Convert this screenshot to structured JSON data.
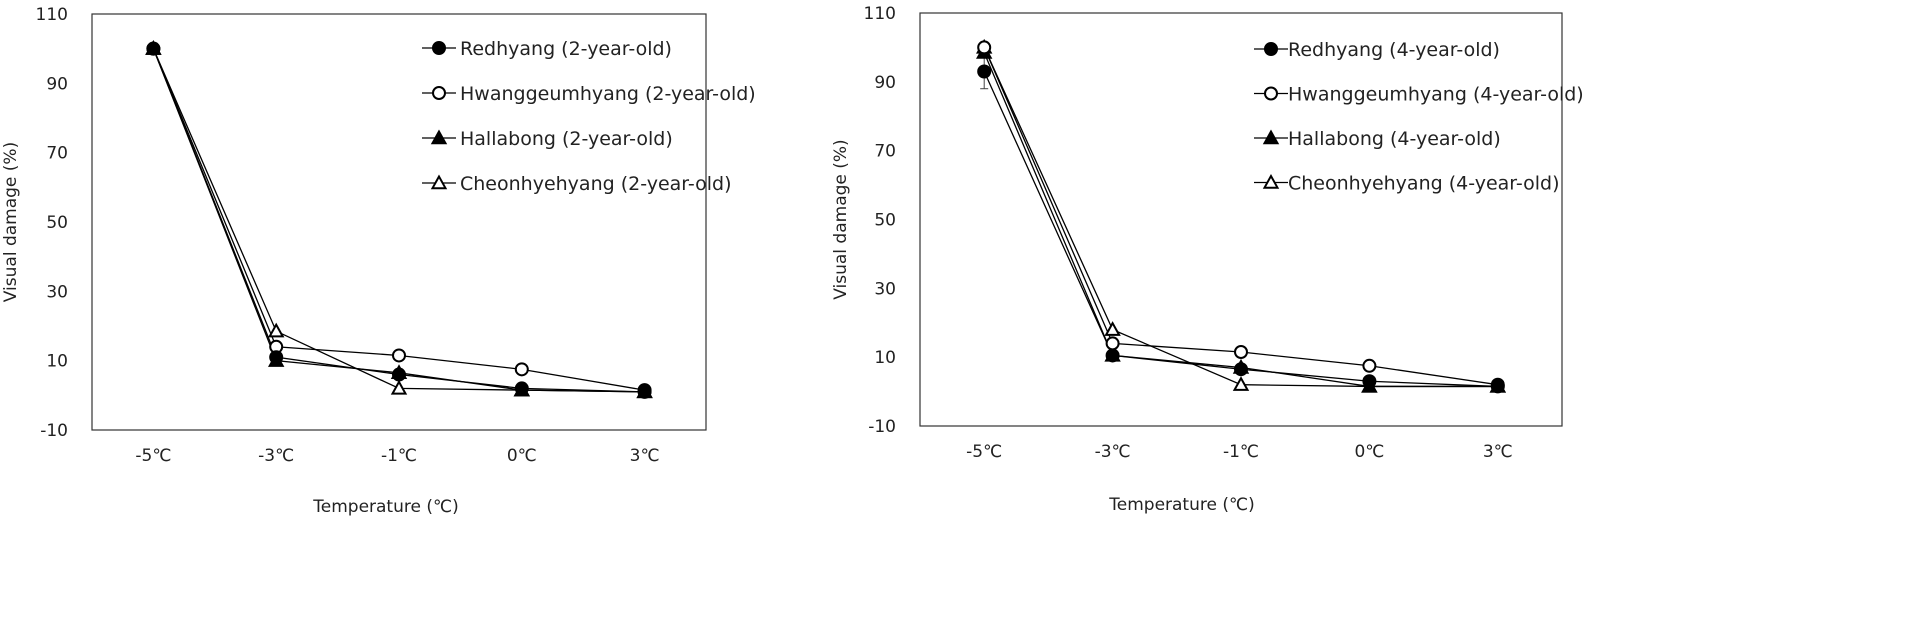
{
  "chart_data": [
    {
      "type": "line",
      "title": "",
      "xlabel": "Temperature (℃)",
      "ylabel": "Visual damage (%)",
      "ylim": [
        -10,
        110
      ],
      "yticks": [
        "110",
        "90",
        "70",
        "50",
        "30",
        "10",
        "-10"
      ],
      "categories": [
        "-5℃",
        "-3℃",
        "-1℃",
        "0℃",
        "3℃"
      ],
      "grid": false,
      "legend_position": "top-right",
      "series": [
        {
          "name": "Redhyang (2-year-old)",
          "marker": "circle-filled",
          "values": [
            100,
            11,
            6,
            2,
            1
          ]
        },
        {
          "name": "Hwanggeumhyang (2-year-old)",
          "marker": "circle-open",
          "values": [
            100,
            14,
            11.5,
            7.5,
            1.5
          ]
        },
        {
          "name": "Hallabong (2-year-old)",
          "marker": "triangle-filled",
          "values": [
            100,
            10,
            6.5,
            1.5,
            1
          ]
        },
        {
          "name": "Cheonhyehyang (2-year-old)",
          "marker": "triangle-open",
          "values": [
            100,
            18.5,
            2,
            1.5,
            1
          ]
        }
      ]
    },
    {
      "type": "line",
      "title": "",
      "xlabel": "Temperature (℃)",
      "ylabel": "Visual damage (%)",
      "ylim": [
        -10,
        110
      ],
      "yticks": [
        "110",
        "90",
        "70",
        "50",
        "30",
        "10",
        "-10"
      ],
      "categories": [
        "-5℃",
        "-3℃",
        "-1℃",
        "0℃",
        "3℃"
      ],
      "grid": false,
      "legend_position": "top-right",
      "series": [
        {
          "name": "Redhyang (4-year-old)",
          "marker": "circle-filled",
          "values": [
            93,
            10.5,
            6.5,
            3,
            1.5
          ],
          "error": [
            5,
            0,
            0,
            0,
            0
          ]
        },
        {
          "name": "Hwanggeumhyang (4-year-old)",
          "marker": "circle-open",
          "values": [
            100,
            14,
            11.5,
            7.5,
            2
          ]
        },
        {
          "name": "Hallabong (4-year-old)",
          "marker": "triangle-filled",
          "values": [
            98.5,
            10.5,
            7,
            1.5,
            1.5
          ]
        },
        {
          "name": "Cheonhyehyang (4-year-old)",
          "marker": "triangle-open",
          "values": [
            100,
            18,
            2,
            1.5,
            1.5
          ]
        }
      ]
    }
  ]
}
